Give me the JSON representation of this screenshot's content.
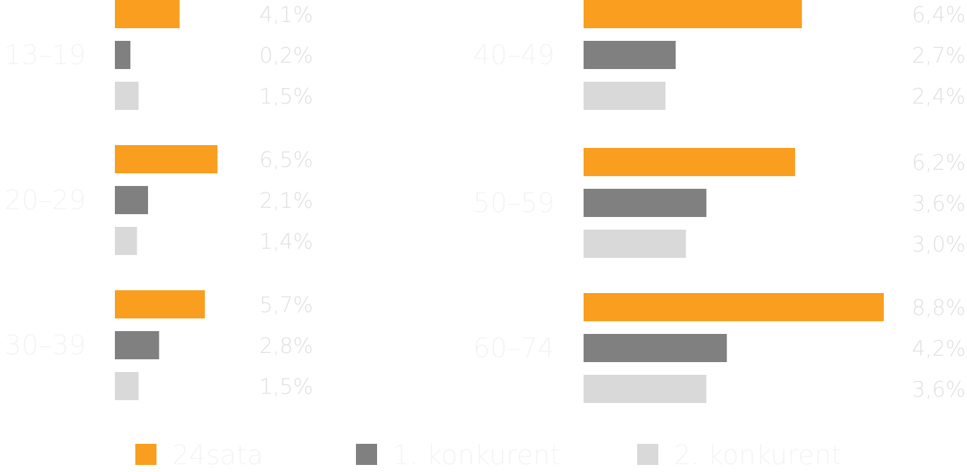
{
  "chart_data": {
    "type": "bar",
    "orientation": "horizontal",
    "categories": [
      "13–19",
      "20–29",
      "30–39",
      "40–49",
      "50–59",
      "60–74"
    ],
    "series": [
      {
        "name": "24sata",
        "color": "#f99e1e",
        "values": [
          4.1,
          6.5,
          5.7,
          6.4,
          6.2,
          8.8
        ]
      },
      {
        "name": "1. konkurent",
        "color": "#808080",
        "values": [
          0.2,
          2.1,
          2.8,
          2.7,
          3.6,
          4.2
        ]
      },
      {
        "name": "2. konkurent",
        "color": "#d9d9d9",
        "values": [
          1.5,
          1.4,
          1.5,
          2.4,
          3.0,
          3.6
        ]
      }
    ],
    "value_labels": [
      [
        "4,1%",
        "0,2%",
        "1,5%"
      ],
      [
        "6,5%",
        "2,1%",
        "1,4%"
      ],
      [
        "5,7%",
        "2,8%",
        "1,5%"
      ],
      [
        "6,4%",
        "2,7%",
        "2,4%"
      ],
      [
        "6,2%",
        "3,6%",
        "3,0%"
      ],
      [
        "8,8%",
        "4,2%",
        "3,6%"
      ]
    ],
    "legend_position": "bottom"
  }
}
